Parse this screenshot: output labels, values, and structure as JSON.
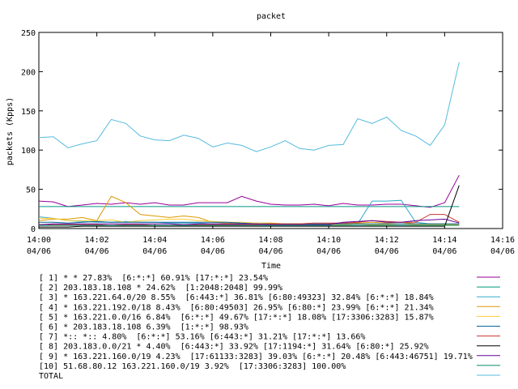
{
  "chart_data": {
    "type": "line",
    "title": "packet",
    "xlabel": "Time",
    "ylabel": "packets (Kpps)",
    "ylim": [
      0,
      250
    ],
    "yticks": [
      0,
      50,
      100,
      150,
      200,
      250
    ],
    "xlim": [
      "14:00",
      "14:16"
    ],
    "xticks": [
      {
        "time": "14:00",
        "date": "04/06",
        "minute": 0
      },
      {
        "time": "14:02",
        "date": "04/06",
        "minute": 2
      },
      {
        "time": "14:04",
        "date": "04/06",
        "minute": 4
      },
      {
        "time": "14:06",
        "date": "04/06",
        "minute": 6
      },
      {
        "time": "14:08",
        "date": "04/06",
        "minute": 8
      },
      {
        "time": "14:10",
        "date": "04/06",
        "minute": 10
      },
      {
        "time": "14:12",
        "date": "04/06",
        "minute": 12
      },
      {
        "time": "14:14",
        "date": "04/06",
        "minute": 14
      },
      {
        "time": "14:16",
        "date": "04/06",
        "minute": 16
      }
    ],
    "x": [
      0,
      0.5,
      1,
      1.5,
      2,
      2.5,
      3,
      3.5,
      4,
      4.5,
      5,
      5.5,
      6,
      6.5,
      7,
      7.5,
      8,
      8.5,
      9,
      9.5,
      10,
      10.5,
      11,
      11.5,
      12,
      12.5,
      13,
      13.5,
      14,
      14.5
    ],
    "grid": false,
    "legend": "bottom",
    "series": [
      {
        "name": "[ 1] * * 27.83%  [6:*:*] 60.91% [17:*:*] 23.54%",
        "color": "#990099",
        "values": [
          35,
          34,
          28,
          30,
          32,
          31,
          33,
          31,
          33,
          30,
          30,
          33,
          33,
          33,
          41,
          35,
          31,
          30,
          30,
          31,
          29,
          32,
          30,
          30,
          31,
          31,
          29,
          27,
          33,
          68
        ]
      },
      {
        "name": "[ 2] 203.183.18.108 * 24.62%  [1:2048:2048] 99.99%",
        "color": "#009980",
        "values": [
          28,
          28,
          28,
          28,
          28,
          28,
          28,
          28,
          28,
          28,
          28,
          28,
          28,
          28,
          28,
          28,
          28,
          28,
          28,
          28,
          28,
          28,
          28,
          28,
          28,
          28,
          28,
          28,
          28,
          28
        ]
      },
      {
        "name": "[ 3] * 163.221.64.0/20 8.55%  [6:443:*] 36.81% [6:80:49323] 32.84% [6:*:*] 18.84%",
        "color": "#33aacc",
        "values": [
          15,
          13,
          10,
          9,
          8,
          8,
          9,
          8,
          8,
          7,
          7,
          7,
          6,
          6,
          5,
          5,
          5,
          6,
          5,
          5,
          5,
          5,
          6,
          35,
          35,
          36,
          8,
          6,
          5,
          5
        ]
      },
      {
        "name": "[ 4] * 163.221.192.0/18 8.43%  [6:80:49503] 26.95% [6:80:*] 23.99% [6:*:*] 21.34%",
        "color": "#dd9900",
        "values": [
          10,
          12,
          12,
          14,
          10,
          41,
          33,
          18,
          16,
          14,
          16,
          14,
          8,
          7,
          6,
          7,
          7,
          6,
          6,
          5,
          6,
          7,
          7,
          8,
          7,
          8,
          6,
          6,
          6,
          5
        ]
      },
      {
        "name": "[ 5] * 163.221.0.0/16 6.84%  [6:*:*] 49.67% [17:*:*] 18.08% [17:3306:3283] 15.87%",
        "color": "#ffcc33",
        "values": [
          13,
          13,
          10,
          10,
          10,
          11,
          8,
          10,
          11,
          12,
          12,
          10,
          9,
          8,
          8,
          7,
          6,
          6,
          6,
          5,
          5,
          5,
          6,
          5,
          5,
          6,
          5,
          5,
          5,
          5
        ]
      },
      {
        "name": "[ 6] * 203.183.18.108 6.39%  [1:*:*] 98.93%",
        "color": "#006699",
        "values": [
          8,
          8,
          7,
          8,
          9,
          8,
          8,
          8,
          8,
          8,
          8,
          8,
          8,
          8,
          7,
          6,
          6,
          6,
          6,
          6,
          6,
          6,
          6,
          6,
          6,
          6,
          6,
          6,
          6,
          6
        ]
      },
      {
        "name": "[ 7] *:: *:: 4.80%  [6:*:*] 53.16% [6:443:*] 31.21% [17:*:*] 13.66%",
        "color": "#cc3333",
        "values": [
          4,
          5,
          5,
          5,
          5,
          4,
          5,
          5,
          4,
          4,
          5,
          5,
          5,
          5,
          5,
          5,
          6,
          6,
          6,
          7,
          7,
          7,
          8,
          10,
          9,
          8,
          8,
          18,
          18,
          8
        ]
      },
      {
        "name": "[ 8] 203.183.0.0/21 * 4.40%  [6:443:*] 33.92% [17:1194:*] 31.64% [6:80:*] 25.92%",
        "color": "#000000",
        "values": [
          2,
          2,
          2,
          3,
          3,
          3,
          3,
          3,
          3,
          3,
          3,
          3,
          3,
          3,
          3,
          3,
          3,
          3,
          3,
          3,
          3,
          3,
          3,
          3,
          3,
          3,
          3,
          3,
          3,
          55
        ]
      },
      {
        "name": "[ 9] * 163.221.160.0/19 4.23%  [17:61133:3283] 39.03% [6:*:*] 20.48% [6:443:46751] 19.71%",
        "color": "#660099",
        "values": [
          5,
          6,
          6,
          6,
          6,
          6,
          6,
          6,
          6,
          6,
          5,
          6,
          6,
          6,
          6,
          6,
          5,
          5,
          5,
          5,
          5,
          8,
          9,
          10,
          8,
          8,
          10,
          11,
          12,
          7
        ]
      },
      {
        "name": "[10] 51.68.80.12 163.221.160.0/19 3.92%  [17:3306:3283] 100.00%",
        "color": "#008866",
        "values": [
          4,
          4,
          4,
          4,
          4,
          4,
          4,
          4,
          4,
          4,
          4,
          4,
          4,
          4,
          4,
          4,
          4,
          4,
          4,
          4,
          4,
          4,
          4,
          4,
          4,
          4,
          4,
          4,
          4,
          4
        ]
      },
      {
        "name": "TOTAL",
        "color": "#55bbdd",
        "values": [
          116,
          117,
          103,
          108,
          112,
          139,
          134,
          118,
          113,
          112,
          119,
          115,
          104,
          109,
          106,
          98,
          104,
          112,
          102,
          100,
          106,
          107,
          140,
          134,
          142,
          125,
          118,
          106,
          132,
          212
        ]
      }
    ]
  }
}
